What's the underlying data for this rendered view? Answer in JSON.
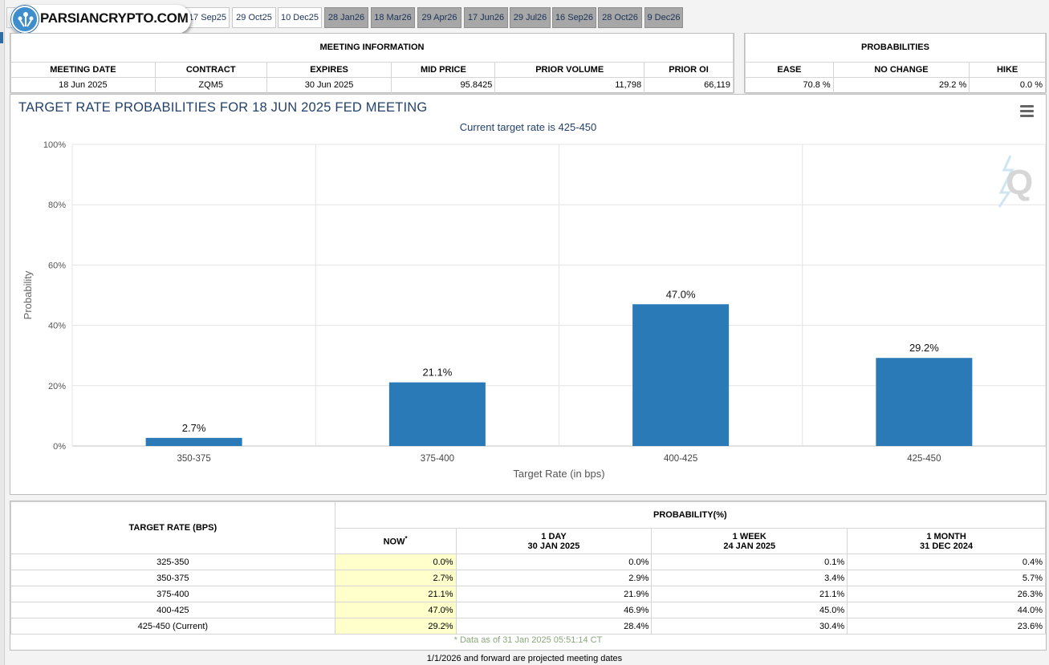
{
  "logo": {
    "text": "PARSIANCRYPTO.COM"
  },
  "tabs": [
    {
      "label": "",
      "projected": false,
      "selected": false
    },
    {
      "label": "",
      "projected": false,
      "selected": true
    },
    {
      "label": "",
      "projected": false,
      "selected": false
    },
    {
      "label": "17 Sep25",
      "projected": false,
      "selected": false
    },
    {
      "label": "29 Oct25",
      "projected": false,
      "selected": false
    },
    {
      "label": "10 Dec25",
      "projected": false,
      "selected": false
    },
    {
      "label": "28 Jan26",
      "projected": true,
      "selected": false
    },
    {
      "label": "18 Mar26",
      "projected": true,
      "selected": false
    },
    {
      "label": "29 Apr26",
      "projected": true,
      "selected": false
    },
    {
      "label": "17 Jun26",
      "projected": true,
      "selected": false
    },
    {
      "label": "29 Jul26",
      "projected": true,
      "selected": false
    },
    {
      "label": "16 Sep26",
      "projected": true,
      "selected": false
    },
    {
      "label": "28 Oct26",
      "projected": true,
      "selected": false
    },
    {
      "label": "9 Dec26",
      "projected": true,
      "selected": false
    }
  ],
  "meeting_info": {
    "title": "MEETING INFORMATION",
    "headers": [
      "MEETING DATE",
      "CONTRACT",
      "EXPIRES",
      "MID PRICE",
      "PRIOR VOLUME",
      "PRIOR OI"
    ],
    "values": [
      "18 Jun 2025",
      "ZQM5",
      "30 Jun 2025",
      "95.8425",
      "11,798",
      "66,119"
    ]
  },
  "probabilities": {
    "title": "PROBABILITIES",
    "headers": [
      "EASE",
      "NO CHANGE",
      "HIKE"
    ],
    "values": [
      "70.8 %",
      "29.2 %",
      "0.0 %"
    ]
  },
  "chart_data": {
    "type": "bar",
    "title": "TARGET RATE PROBABILITIES FOR 18 JUN 2025 FED MEETING",
    "subtitle": "Current target rate is 425-450",
    "xlabel": "Target Rate (in bps)",
    "ylabel": "Probability",
    "categories": [
      "350-375",
      "375-400",
      "400-425",
      "425-450"
    ],
    "values": [
      2.7,
      21.1,
      47.0,
      29.2
    ],
    "data_labels": [
      "2.7%",
      "21.1%",
      "47.0%",
      "29.2%"
    ],
    "ylim": [
      0,
      100
    ],
    "yticks": [
      "0%",
      "20%",
      "40%",
      "60%",
      "80%",
      "100%"
    ],
    "bar_color": "#2a7ab8",
    "grid": true
  },
  "prob_table": {
    "col_target": "TARGET RATE (BPS)",
    "col_group": "PROBABILITY(%)",
    "now_label": "NOW",
    "now_mark": "*",
    "periods": [
      {
        "label": "1 DAY",
        "date": "30 JAN 2025"
      },
      {
        "label": "1 WEEK",
        "date": "24 JAN 2025"
      },
      {
        "label": "1 MONTH",
        "date": "31 DEC 2024"
      }
    ],
    "rows": [
      {
        "rate": "325-350",
        "now": "0.0%",
        "day": "0.0%",
        "week": "0.1%",
        "month": "0.4%"
      },
      {
        "rate": "350-375",
        "now": "2.7%",
        "day": "2.9%",
        "week": "3.4%",
        "month": "5.7%"
      },
      {
        "rate": "375-400",
        "now": "21.1%",
        "day": "21.9%",
        "week": "21.1%",
        "month": "26.3%"
      },
      {
        "rate": "400-425",
        "now": "47.0%",
        "day": "46.9%",
        "week": "45.0%",
        "month": "44.0%"
      },
      {
        "rate": "425-450 (Current)",
        "now": "29.2%",
        "day": "28.4%",
        "week": "30.4%",
        "month": "23.6%"
      }
    ],
    "footnote": "* Data as of 31 Jan 2025 05:51:14 CT"
  },
  "bottom_note": "1/1/2026 and forward are projected meeting dates",
  "colors": {
    "now_highlight": "#ffffcc",
    "title_text": "#24426b",
    "projected_tab": "#a7a7a7"
  }
}
